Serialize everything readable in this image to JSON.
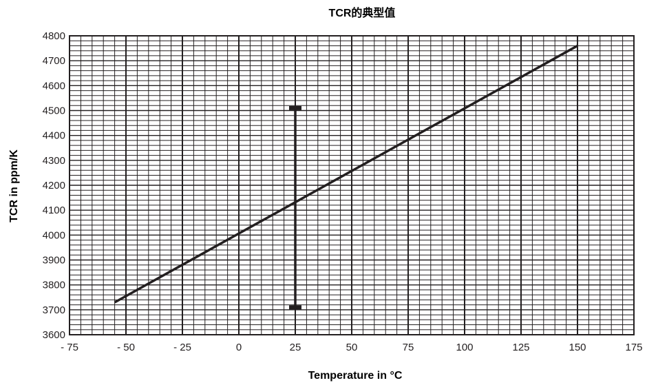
{
  "chart_data": {
    "type": "line",
    "title": "TCR的典型值",
    "xlabel": "Temperature in °C",
    "ylabel": "TCR in ppm/K",
    "xlim": [
      -75,
      175
    ],
    "ylim": [
      3600,
      4800
    ],
    "x_ticks": [
      -75,
      -50,
      -25,
      0,
      25,
      50,
      75,
      100,
      125,
      150,
      175
    ],
    "x_tick_labels": [
      "- 75",
      "- 50",
      "- 25",
      "0",
      "25",
      "50",
      "75",
      "100",
      "125",
      "150",
      "175"
    ],
    "y_ticks": [
      3600,
      3700,
      3800,
      3900,
      4000,
      4100,
      4200,
      4300,
      4400,
      4500,
      4600,
      4700,
      4800
    ],
    "y_tick_labels": [
      "3600",
      "3700",
      "3800",
      "3900",
      "4000",
      "4100",
      "4200",
      "4300",
      "4400",
      "4500",
      "4600",
      "4700",
      "4800"
    ],
    "grid": true,
    "series": [
      {
        "x": [
          -55,
          150
        ],
        "y": [
          3730,
          4760
        ]
      }
    ],
    "error_bar": {
      "x": 25,
      "y_low": 3710,
      "y_high": 4510
    },
    "colors": {
      "line": "#231f20",
      "grid": "#231f20",
      "background": "#ffffff"
    }
  }
}
